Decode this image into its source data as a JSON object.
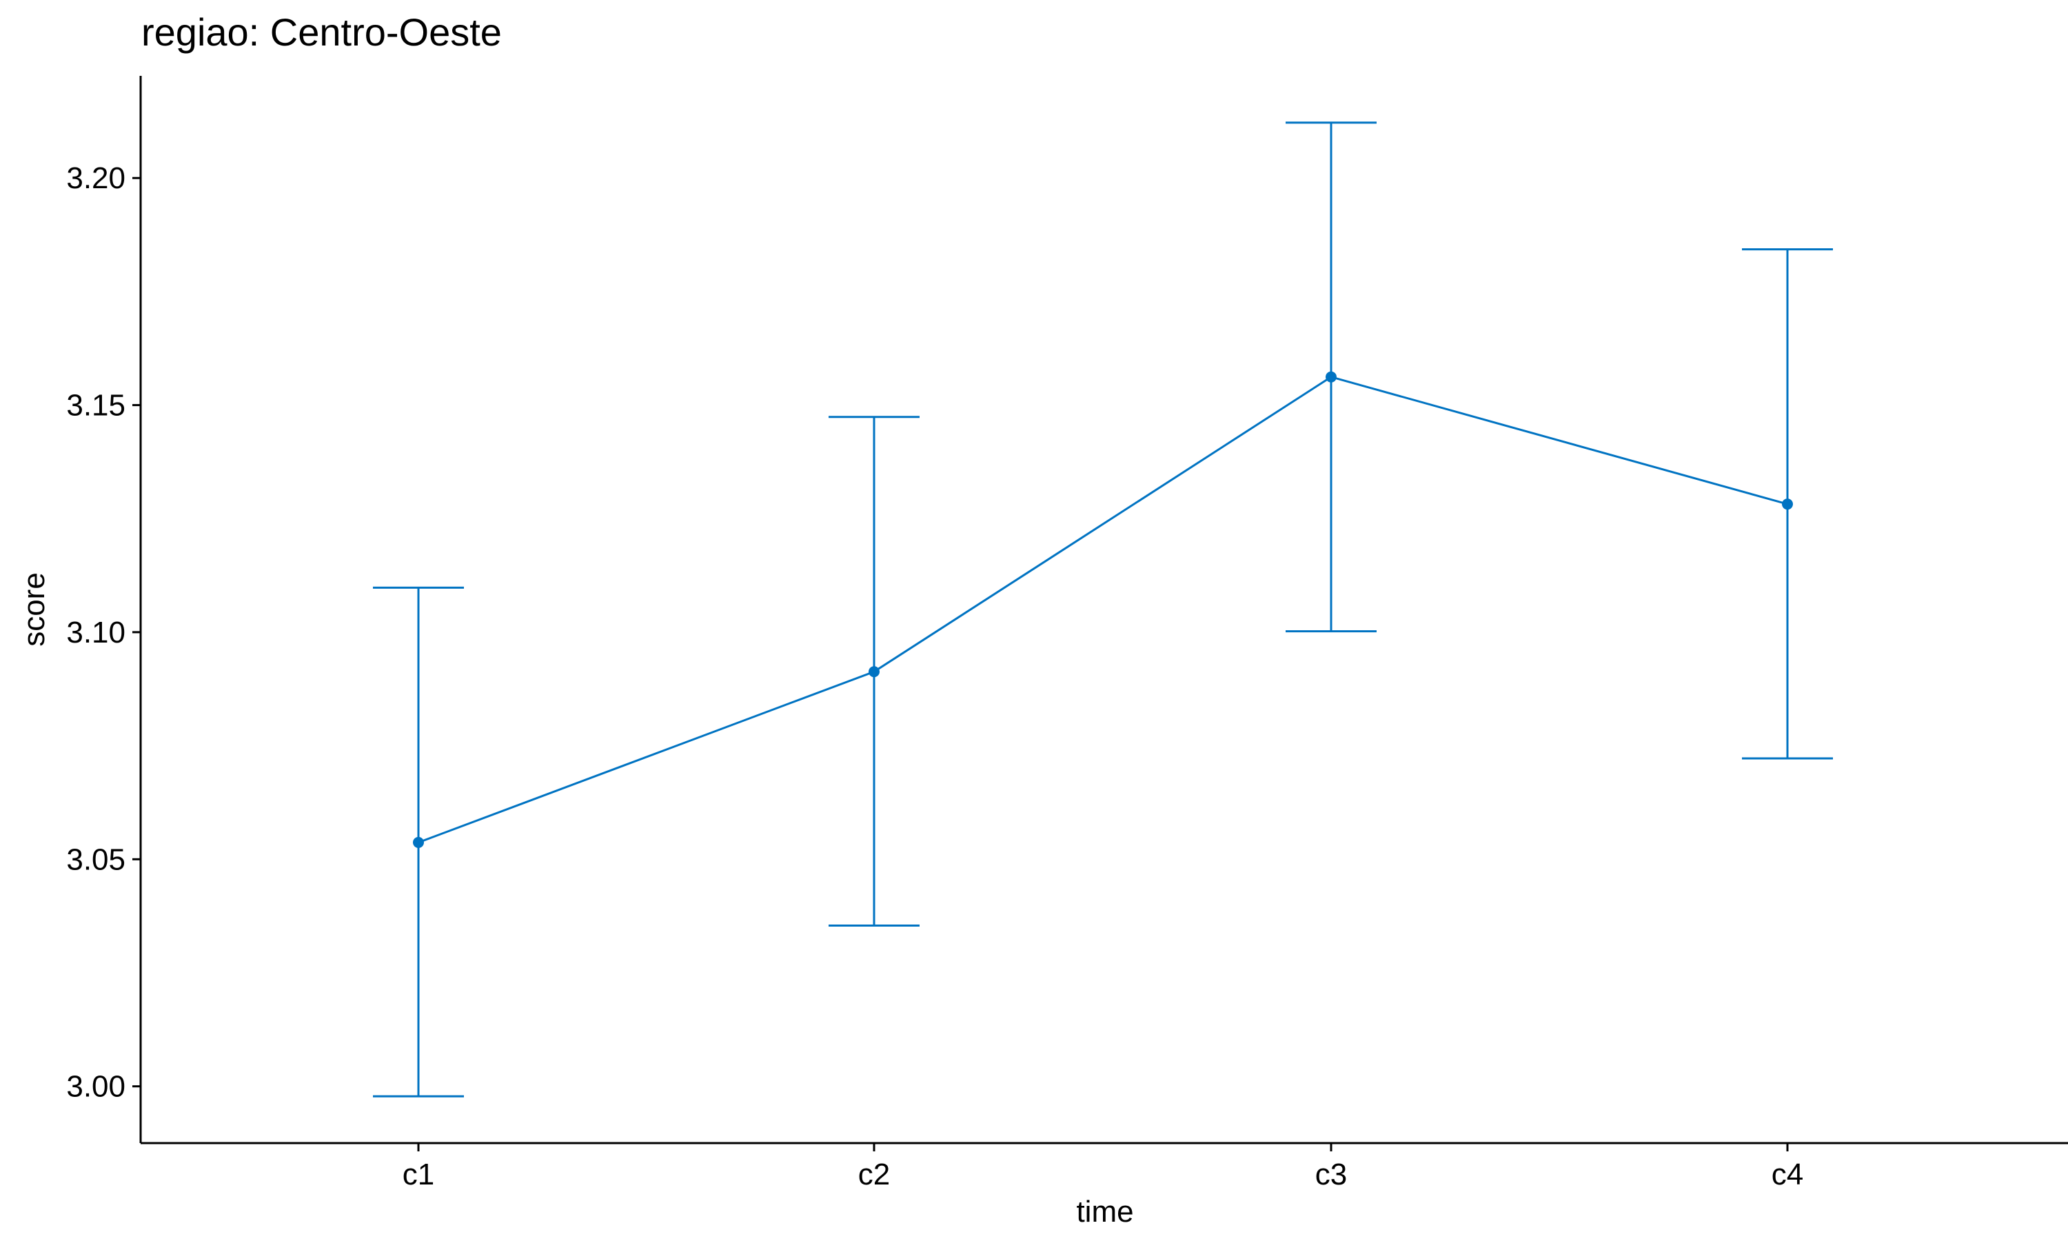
{
  "chart_data": {
    "type": "line",
    "title": "regiao: Centro-Oeste",
    "xlabel": "time",
    "ylabel": "score",
    "categories": [
      "c1",
      "c2",
      "c3",
      "c4"
    ],
    "series": [
      {
        "values": [
          3.0537,
          3.0913,
          3.1562,
          3.1282
        ],
        "error_lower": [
          2.9978,
          3.0354,
          3.1002,
          3.0722
        ],
        "error_upper": [
          3.1098,
          3.1474,
          3.2122,
          3.1843
        ]
      }
    ],
    "ylim": [
      2.9875,
      3.2225
    ],
    "yticks": [
      3.0,
      3.05,
      3.1,
      3.15,
      3.2
    ],
    "ytick_labels": [
      "3.00",
      "3.05",
      "3.10",
      "3.15",
      "3.20"
    ],
    "grid": false,
    "legend": "none",
    "colors": {
      "series": "#0073C2",
      "axis": "#000000"
    }
  }
}
